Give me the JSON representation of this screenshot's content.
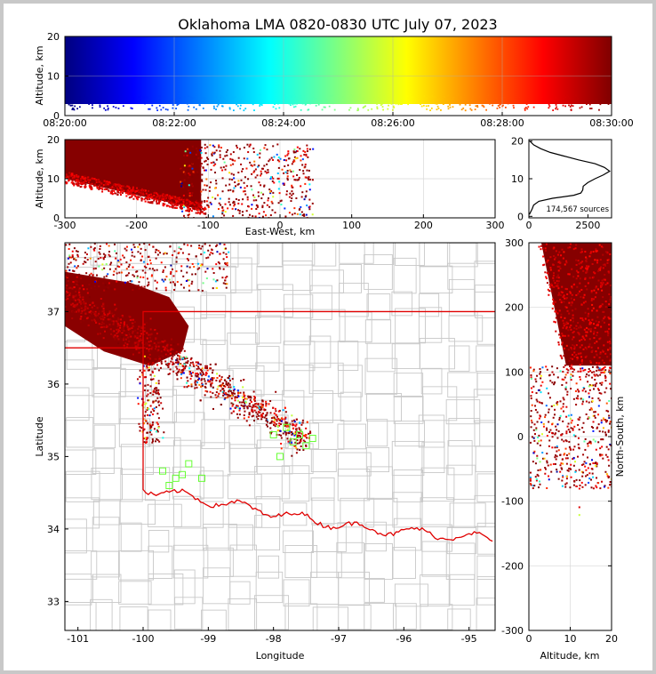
{
  "title": "Oklahoma LMA 0820-0830 UTC July 07, 2023",
  "colors": {
    "state_border": "#e00000",
    "county_lines": "#c8c8c8",
    "station_marker": "#66ff33",
    "frame_border": "#c8c8c8",
    "colormap": [
      "#00007f",
      "#0000ff",
      "#007fff",
      "#00ffff",
      "#7fff7f",
      "#ffff00",
      "#ff7f00",
      "#ff0000",
      "#7f0000"
    ]
  },
  "chart_data": [
    {
      "type": "scatter",
      "name": "time-altitude",
      "xlabel": "",
      "ylabel": "Altitude, km",
      "xticks": [
        "08:20:00",
        "08:22:00",
        "08:24:00",
        "08:26:00",
        "08:28:00",
        "08:30:00"
      ],
      "xlim_minutes": [
        0,
        10
      ],
      "ylim": [
        0,
        20
      ],
      "yticks": [
        0,
        10,
        20
      ],
      "grid": true,
      "colored_by": "time"
    },
    {
      "type": "scatter",
      "name": "east-west-altitude",
      "xlabel": "East-West, km",
      "ylabel": "Altitude, km",
      "xlim": [
        -300,
        300
      ],
      "xticks": [
        -300,
        -200,
        -100,
        0,
        100,
        200,
        300
      ],
      "ylim": [
        0,
        20
      ],
      "yticks": [
        0,
        10,
        20
      ],
      "grid": true,
      "source_extent_km": [
        -300,
        45
      ]
    },
    {
      "type": "line",
      "name": "altitude-histogram",
      "annotation": "174,567 sources",
      "xlim": [
        0,
        3500
      ],
      "xticks": [
        0,
        2500
      ],
      "ylim": [
        0,
        20
      ],
      "yticks": [
        0,
        10,
        20
      ],
      "profile": [
        {
          "alt": 0.5,
          "count": 20
        },
        {
          "alt": 2,
          "count": 140
        },
        {
          "alt": 3,
          "count": 200
        },
        {
          "alt": 4,
          "count": 420
        },
        {
          "alt": 4.8,
          "count": 1000
        },
        {
          "alt": 5.6,
          "count": 1900
        },
        {
          "alt": 6.2,
          "count": 2200
        },
        {
          "alt": 7,
          "count": 2280
        },
        {
          "alt": 8,
          "count": 2300
        },
        {
          "alt": 9,
          "count": 2500
        },
        {
          "alt": 10,
          "count": 2800
        },
        {
          "alt": 11,
          "count": 3150
        },
        {
          "alt": 12,
          "count": 3420
        },
        {
          "alt": 13,
          "count": 3200
        },
        {
          "alt": 14,
          "count": 2800
        },
        {
          "alt": 15,
          "count": 2100
        },
        {
          "alt": 16,
          "count": 1500
        },
        {
          "alt": 17,
          "count": 900
        },
        {
          "alt": 18,
          "count": 500
        },
        {
          "alt": 19,
          "count": 200
        },
        {
          "alt": 20,
          "count": 40
        }
      ]
    },
    {
      "type": "scatter",
      "name": "plan-view",
      "xlabel": "Longitude",
      "ylabel": "Latitude",
      "xlim": [
        -101.2,
        -94.6
      ],
      "xticks": [
        -101,
        -100,
        -99,
        -98,
        -97,
        -96,
        -95
      ],
      "ylim": [
        32.6,
        37.95
      ],
      "yticks": [
        33,
        34,
        35,
        36,
        37
      ],
      "stations": [
        [
          -98.0,
          35.3
        ],
        [
          -97.8,
          35.4
        ],
        [
          -97.7,
          35.2
        ],
        [
          -97.6,
          35.3
        ],
        [
          -97.4,
          35.25
        ],
        [
          -97.9,
          35.0
        ],
        [
          -97.5,
          35.15
        ],
        [
          -99.7,
          34.8
        ],
        [
          -99.6,
          34.6
        ],
        [
          -99.5,
          34.7
        ],
        [
          -99.4,
          34.75
        ],
        [
          -99.1,
          34.7
        ],
        [
          -99.3,
          34.9
        ]
      ]
    },
    {
      "type": "scatter",
      "name": "altitude-north-south",
      "xlabel": "Altitude, km",
      "ylabel": "North-South, km",
      "xlim": [
        0,
        20
      ],
      "xticks": [
        0,
        10,
        20
      ],
      "ylim": [
        -300,
        300
      ],
      "yticks": [
        -300,
        -200,
        -100,
        0,
        100,
        200,
        300
      ],
      "source_extent_km": [
        -120,
        300
      ]
    }
  ]
}
